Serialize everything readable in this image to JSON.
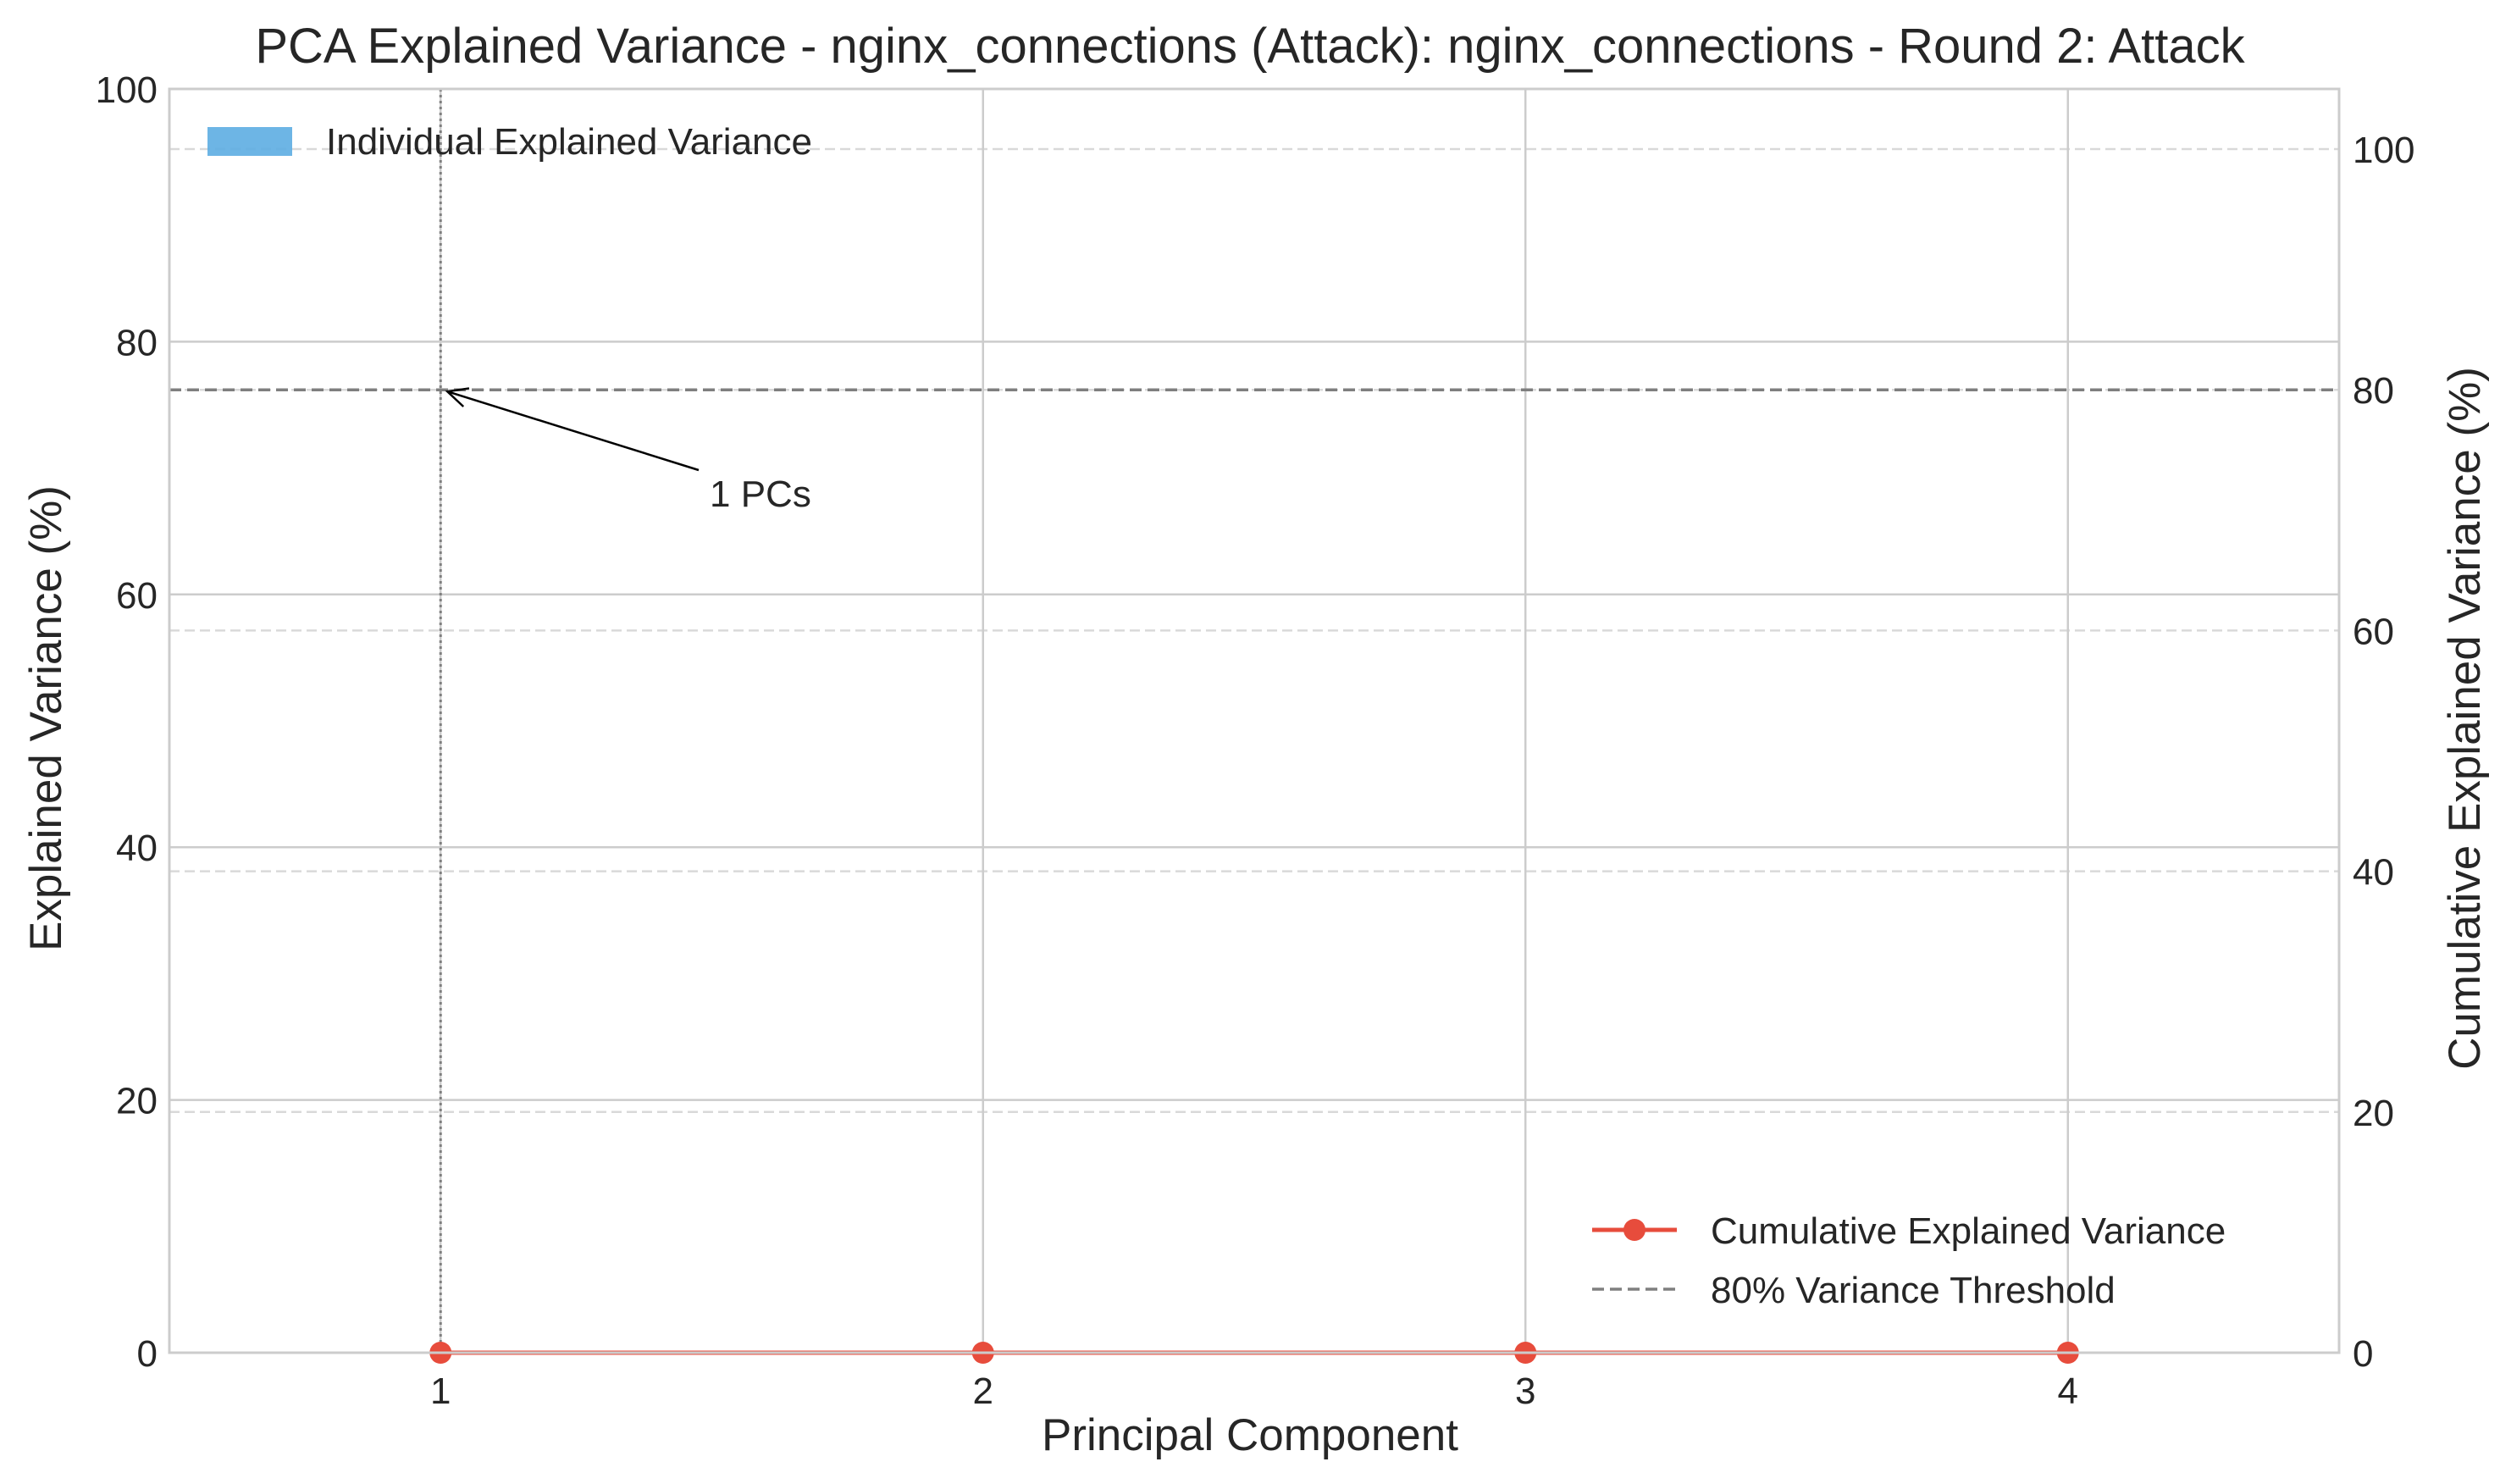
{
  "chart_data": {
    "type": "bar",
    "title": "PCA Explained Variance - nginx_connections (Attack): nginx_connections - Round 2: Attack",
    "xlabel": "Principal Component",
    "ylabel": "Explained Variance (%)",
    "y2label": "Cumulative Explained Variance (%)",
    "categories": [
      1,
      2,
      3,
      4
    ],
    "x_tick_labels": [
      "1",
      "2",
      "3",
      "4"
    ],
    "xlim": [
      0.5,
      4.5
    ],
    "ylim": [
      0,
      100
    ],
    "y2lim": [
      0,
      105
    ],
    "y_ticks": [
      0,
      20,
      40,
      60,
      80,
      100
    ],
    "y_tick_labels": [
      "0",
      "20",
      "40",
      "60",
      "80",
      "100"
    ],
    "y2_ticks": [
      0,
      20,
      40,
      60,
      80,
      100
    ],
    "y2_tick_labels": [
      "0",
      "20",
      "40",
      "60",
      "80",
      "100"
    ],
    "grid": true,
    "series": [
      {
        "name": "Individual Explained Variance",
        "kind": "bar",
        "axis": "left",
        "color": "#5dade2",
        "values": [
          0,
          0,
          0,
          0
        ]
      },
      {
        "name": "Cumulative Explained Variance",
        "kind": "line-marker",
        "axis": "right",
        "color": "#e74c3c",
        "values": [
          0,
          0,
          0,
          0
        ]
      },
      {
        "name": "80% Variance Threshold",
        "kind": "hline-dashed",
        "axis": "right",
        "color": "#7f7f7f",
        "value": 80
      }
    ],
    "vline": {
      "x": 1,
      "style": "dotted",
      "color": "#7f7f7f"
    },
    "annotation": {
      "text": "1 PCs",
      "arrow_to_x": 1,
      "arrow_to_y2": 80
    },
    "legends": [
      {
        "placement": "upper-left",
        "entries": [
          "Individual Explained Variance"
        ]
      },
      {
        "placement": "lower-right",
        "entries": [
          "Cumulative Explained Variance",
          "80% Variance Threshold"
        ]
      }
    ]
  }
}
